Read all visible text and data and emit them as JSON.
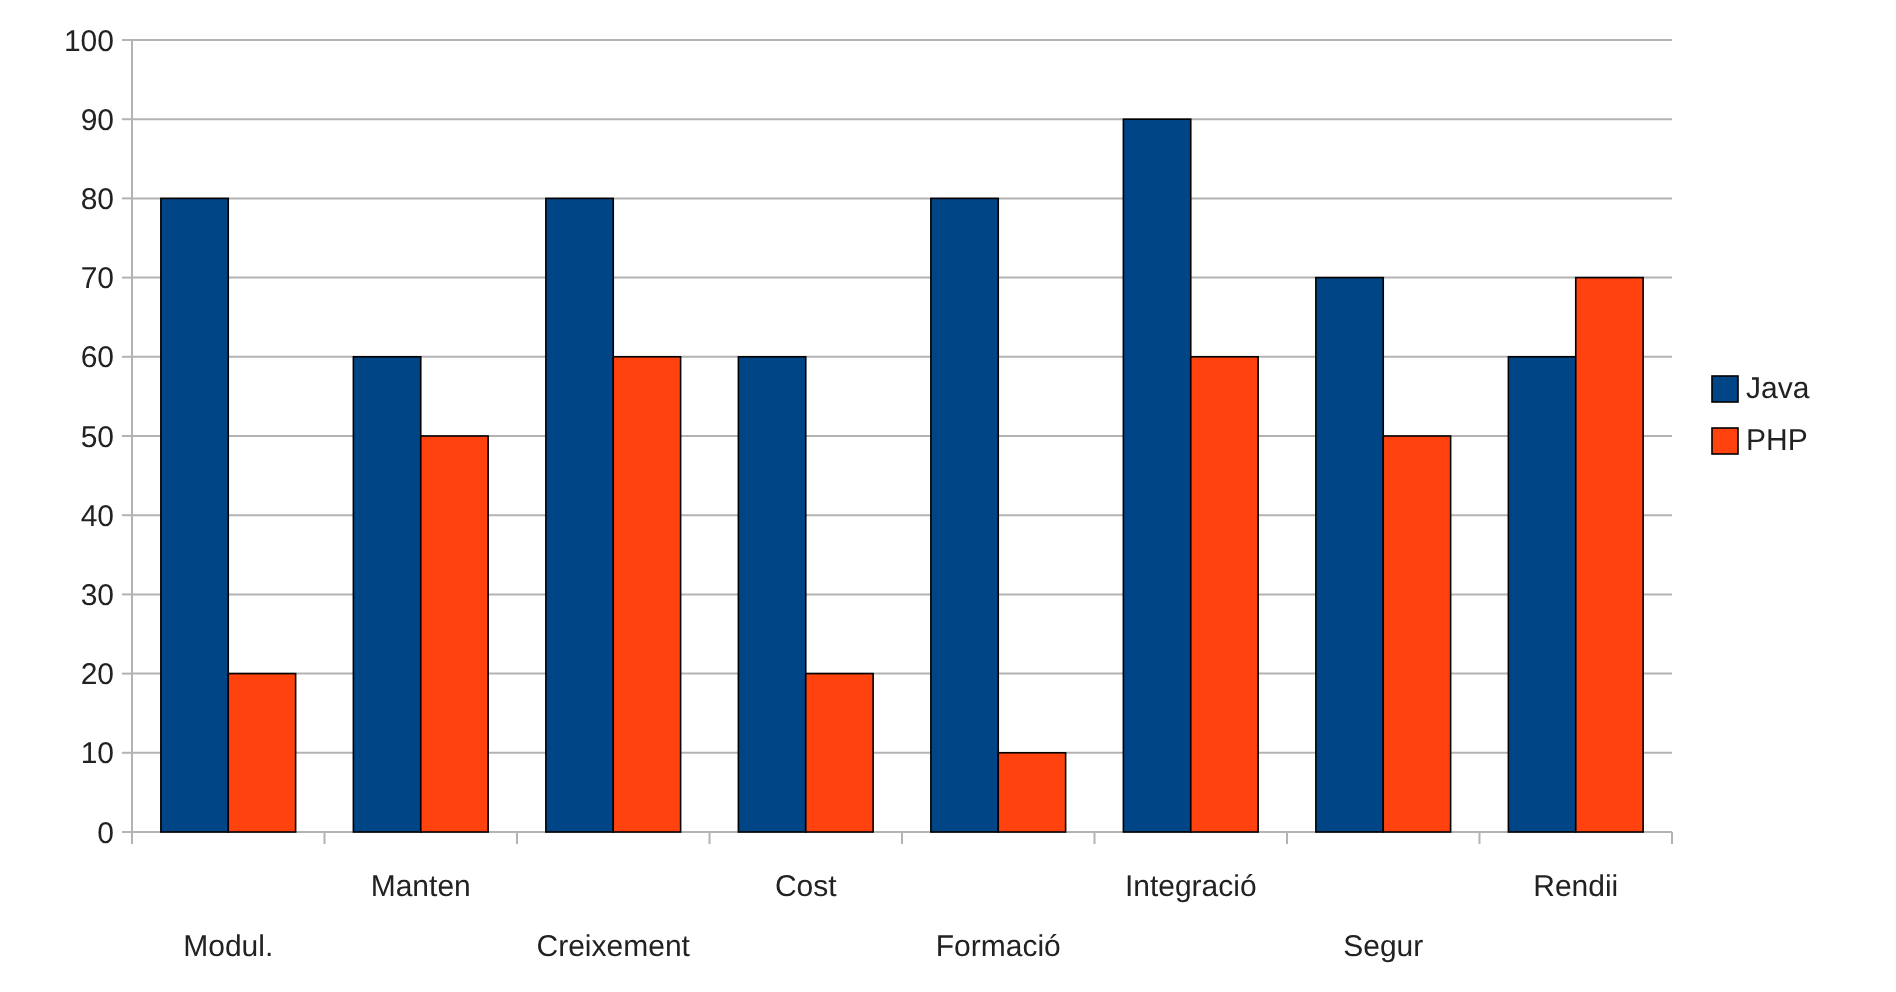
{
  "chart_data": {
    "type": "bar",
    "categories": [
      "Modul.",
      "Manten",
      "Creixement",
      "Cost",
      "Formació",
      "Integració",
      "Segur",
      "Rendii"
    ],
    "series": [
      {
        "name": "Java",
        "color": "#004586",
        "values": [
          80,
          60,
          80,
          60,
          80,
          90,
          70,
          60
        ]
      },
      {
        "name": "PHP",
        "color": "#ff420e",
        "values": [
          20,
          50,
          60,
          20,
          10,
          60,
          50,
          70
        ]
      }
    ],
    "ylim": [
      0,
      100
    ],
    "yticks": [
      0,
      10,
      20,
      30,
      40,
      50,
      60,
      70,
      80,
      90,
      100
    ],
    "grid": "y",
    "legend": "right"
  }
}
